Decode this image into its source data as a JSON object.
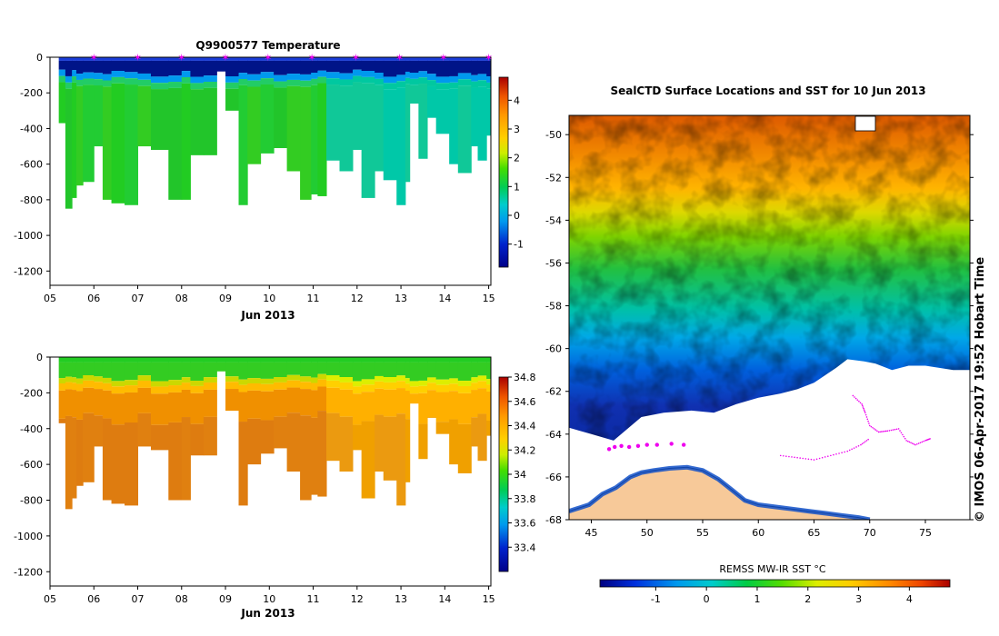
{
  "chart_data": [
    {
      "type": "heatmap",
      "name": "temperature-section",
      "title": "Q9900577  Temperature",
      "xlabel": "Jun 2013",
      "ylabel": "",
      "x_ticks": [
        "05",
        "06",
        "07",
        "08",
        "09",
        "10",
        "11",
        "12",
        "13",
        "14",
        "15"
      ],
      "y_ticks": [
        "0",
        "-200",
        "-400",
        "-600",
        "-800",
        "-1000",
        "-1200"
      ],
      "xlim": [
        5,
        15.05
      ],
      "ylim": [
        -1280,
        0
      ],
      "colorbar": {
        "range": [
          -1.8,
          4.8
        ],
        "ticks": [
          "-1",
          "0",
          "1",
          "2",
          "3",
          "4"
        ],
        "tick_values": [
          -1,
          0,
          1,
          2,
          3,
          4
        ]
      },
      "surface_markers_day": [
        6.0,
        7.0,
        8.0,
        9.0,
        9.97,
        10.97,
        11.97,
        12.97,
        13.97,
        15.0
      ],
      "profile_bottoms": [
        [
          5.2,
          -370
        ],
        [
          5.35,
          -850
        ],
        [
          5.5,
          -790
        ],
        [
          5.6,
          -720
        ],
        [
          5.75,
          -700
        ],
        [
          6.0,
          -500
        ],
        [
          6.2,
          -800
        ],
        [
          6.4,
          -820
        ],
        [
          6.7,
          -830
        ],
        [
          7.0,
          -500
        ],
        [
          7.3,
          -520
        ],
        [
          7.7,
          -800
        ],
        [
          8.0,
          -800
        ],
        [
          8.2,
          -550
        ],
        [
          8.5,
          -550
        ],
        [
          8.8,
          -80
        ],
        [
          9.0,
          -300
        ],
        [
          9.3,
          -830
        ],
        [
          9.5,
          -600
        ],
        [
          9.8,
          -540
        ],
        [
          10.1,
          -510
        ],
        [
          10.4,
          -640
        ],
        [
          10.7,
          -800
        ],
        [
          10.95,
          -770
        ],
        [
          11.1,
          -780
        ],
        [
          11.3,
          -580
        ],
        [
          11.6,
          -640
        ],
        [
          11.9,
          -520
        ],
        [
          12.1,
          -790
        ],
        [
          12.4,
          -640
        ],
        [
          12.6,
          -690
        ],
        [
          12.9,
          -830
        ],
        [
          13.1,
          -700
        ],
        [
          13.2,
          -260
        ],
        [
          13.4,
          -570
        ],
        [
          13.6,
          -340
        ],
        [
          13.8,
          -430
        ],
        [
          14.1,
          -600
        ],
        [
          14.3,
          -650
        ],
        [
          14.6,
          -500
        ],
        [
          14.75,
          -580
        ],
        [
          14.95,
          -440
        ]
      ]
    },
    {
      "type": "heatmap",
      "name": "salinity-section",
      "title": "",
      "xlabel": "Jun 2013",
      "x_ticks": [
        "05",
        "06",
        "07",
        "08",
        "09",
        "10",
        "11",
        "12",
        "13",
        "14",
        "15"
      ],
      "y_ticks": [
        "0",
        "-200",
        "-400",
        "-600",
        "-800",
        "-1000",
        "-1200"
      ],
      "xlim": [
        5,
        15.05
      ],
      "ylim": [
        -1280,
        0
      ],
      "colorbar": {
        "range": [
          33.2,
          34.8
        ],
        "ticks": [
          "33.4",
          "33.6",
          "33.8",
          "34",
          "34.2",
          "34.4",
          "34.6",
          "34.8"
        ],
        "tick_values": [
          33.4,
          33.6,
          33.8,
          34.0,
          34.2,
          34.4,
          34.6,
          34.8
        ]
      }
    },
    {
      "type": "heatmap",
      "name": "sst-map",
      "title": "SealCTD Surface Locations and SST for 10 Jun 2013",
      "xlabel": "REMSS MW-IR SST °C",
      "x_ticks": [
        "45",
        "50",
        "55",
        "60",
        "65",
        "70",
        "75"
      ],
      "x_tick_values": [
        45,
        50,
        55,
        60,
        65,
        70,
        75
      ],
      "y_ticks": [
        "-50",
        "-52",
        "-54",
        "-56",
        "-58",
        "-60",
        "-62",
        "-64",
        "-66",
        "-68"
      ],
      "y_tick_values": [
        -50,
        -52,
        -54,
        -56,
        -58,
        -60,
        -62,
        -64,
        -66,
        -68
      ],
      "xlim": [
        43.0,
        79.0
      ],
      "ylim": [
        -68.0,
        -49.1
      ],
      "colorbar": {
        "range": [
          -2.1,
          4.8
        ],
        "ticks": [
          "-1",
          "0",
          "1",
          "2",
          "3",
          "4"
        ],
        "tick_values": [
          -1,
          0,
          1,
          2,
          3,
          4
        ]
      },
      "side_label": "© IMOS 06-Apr-2017 19:52 Hobart Time",
      "track_lonlat": [
        [
          68.5,
          -62.2
        ],
        [
          69.3,
          -62.6
        ],
        [
          69.6,
          -63.0
        ],
        [
          70.0,
          -63.6
        ],
        [
          70.8,
          -63.9
        ],
        [
          71.6,
          -63.85
        ],
        [
          72.6,
          -63.75
        ],
        [
          73.3,
          -64.3
        ],
        [
          74.1,
          -64.5
        ],
        [
          75.0,
          -64.3
        ],
        [
          75.5,
          -64.2
        ]
      ],
      "track_lonlat_south": [
        [
          62.0,
          -65.0
        ],
        [
          63.5,
          -65.1
        ],
        [
          65.0,
          -65.2
        ],
        [
          66.5,
          -65.0
        ],
        [
          68.0,
          -64.8
        ],
        [
          69.2,
          -64.5
        ],
        [
          70.0,
          -64.2
        ]
      ],
      "seal_cluster_lonlat": [
        [
          46.6,
          -64.7
        ],
        [
          47.1,
          -64.6
        ],
        [
          47.7,
          -64.55
        ],
        [
          48.4,
          -64.6
        ],
        [
          49.2,
          -64.55
        ],
        [
          50.0,
          -64.5
        ],
        [
          50.9,
          -64.5
        ],
        [
          52.2,
          -64.45
        ],
        [
          53.3,
          -64.5
        ]
      ],
      "coast_lonlat": [
        [
          43.0,
          -67.6
        ],
        [
          44.8,
          -67.3
        ],
        [
          46.0,
          -66.8
        ],
        [
          47.2,
          -66.5
        ],
        [
          48.5,
          -66.0
        ],
        [
          49.5,
          -65.8
        ],
        [
          50.6,
          -65.7
        ],
        [
          52.0,
          -65.6
        ],
        [
          53.6,
          -65.55
        ],
        [
          55.0,
          -65.7
        ],
        [
          56.4,
          -66.1
        ],
        [
          57.6,
          -66.6
        ],
        [
          58.8,
          -67.1
        ],
        [
          60.0,
          -67.3
        ],
        [
          61.5,
          -67.4
        ],
        [
          63.0,
          -67.5
        ],
        [
          64.5,
          -67.6
        ],
        [
          66.0,
          -67.7
        ],
        [
          67.5,
          -67.8
        ],
        [
          69.0,
          -67.9
        ],
        [
          70.0,
          -68.0
        ]
      ],
      "ice_edge_lonlat": [
        [
          43.0,
          -63.7
        ],
        [
          45.0,
          -64.0
        ],
        [
          47.0,
          -64.3
        ],
        [
          49.5,
          -63.2
        ],
        [
          51.5,
          -63.0
        ],
        [
          54.0,
          -62.9
        ],
        [
          56.0,
          -63.0
        ],
        [
          58.0,
          -62.6
        ],
        [
          60.0,
          -62.3
        ],
        [
          62.0,
          -62.1
        ],
        [
          63.5,
          -61.9
        ],
        [
          65.0,
          -61.6
        ],
        [
          67.0,
          -60.9
        ],
        [
          68.0,
          -60.5
        ],
        [
          69.5,
          -60.6
        ],
        [
          70.5,
          -60.7
        ],
        [
          72.0,
          -61.0
        ],
        [
          73.5,
          -60.8
        ],
        [
          75.0,
          -60.8
        ],
        [
          77.5,
          -61.0
        ],
        [
          79.0,
          -61.0
        ]
      ]
    }
  ]
}
